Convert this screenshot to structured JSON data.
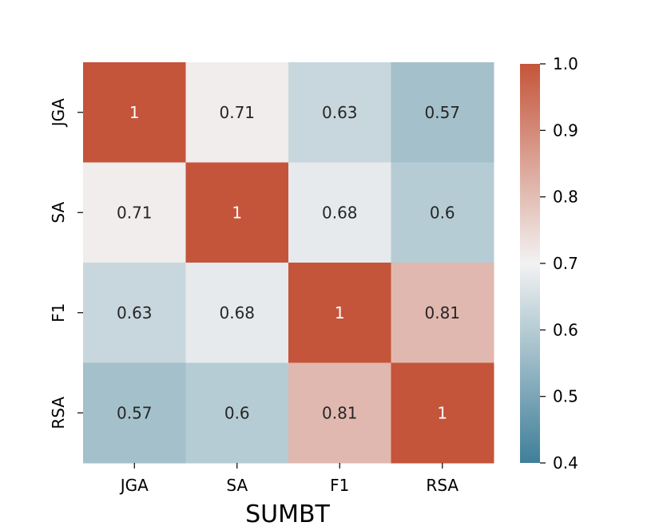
{
  "chart_data": {
    "type": "heatmap",
    "title": "",
    "xlabel": "SUMBT",
    "ylabel": "",
    "x_categories": [
      "JGA",
      "SA",
      "F1",
      "RSA"
    ],
    "y_categories": [
      "JGA",
      "SA",
      "F1",
      "RSA"
    ],
    "values": [
      [
        1,
        0.71,
        0.63,
        0.57
      ],
      [
        0.71,
        1,
        0.68,
        0.6
      ],
      [
        0.63,
        0.68,
        1,
        0.81
      ],
      [
        0.57,
        0.6,
        0.81,
        1
      ]
    ],
    "value_labels": [
      [
        "1",
        "0.71",
        "0.63",
        "0.57"
      ],
      [
        "0.71",
        "1",
        "0.68",
        "0.6"
      ],
      [
        "0.63",
        "0.68",
        "1",
        "0.81"
      ],
      [
        "0.57",
        "0.6",
        "0.81",
        "1"
      ]
    ],
    "colorbar": {
      "vmin": 0.4,
      "vmax": 1.0,
      "center": 0.7,
      "ticks": [
        0.4,
        0.5,
        0.6,
        0.7,
        0.8,
        0.9,
        1.0
      ],
      "tick_labels": [
        "0.4",
        "0.5",
        "0.6",
        "0.7",
        "0.8",
        "0.9",
        "1.0"
      ],
      "low_color": "#3f7f99",
      "center_color": "#f2f2f2",
      "high_color": "#c4553a"
    },
    "grid": false,
    "legend": "colorbar-right"
  }
}
